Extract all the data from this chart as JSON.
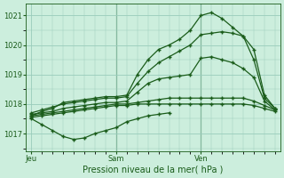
{
  "title": "",
  "xlabel": "Pression niveau de la mer( hPa )",
  "background_color": "#cceedd",
  "grid_color": "#99ccbb",
  "line_color": "#1a5c1a",
  "ylim": [
    1016.4,
    1021.4
  ],
  "yticks": [
    1017,
    1018,
    1019,
    1020,
    1021
  ],
  "xtick_labels": [
    "Jeu",
    "Sam",
    "Ven"
  ],
  "xtick_positions": [
    0,
    8,
    16
  ],
  "vlines": [
    8,
    16
  ],
  "xlim": [
    -0.5,
    23.5
  ],
  "series": [
    {
      "x": [
        0,
        1,
        2,
        3,
        4,
        5,
        6,
        7,
        8,
        9,
        10,
        11,
        12,
        13,
        14,
        15,
        16,
        17,
        18,
        19,
        20,
        21,
        22,
        23
      ],
      "y": [
        1017.6,
        1017.75,
        1017.85,
        1018.05,
        1018.1,
        1018.15,
        1018.2,
        1018.25,
        1018.25,
        1018.3,
        1019.0,
        1019.5,
        1019.85,
        1020.0,
        1020.2,
        1020.5,
        1021.0,
        1021.1,
        1020.9,
        1020.6,
        1020.3,
        1019.5,
        1018.2,
        1017.85
      ]
    },
    {
      "x": [
        0,
        1,
        2,
        3,
        4,
        5,
        6,
        7,
        8,
        9,
        10,
        11,
        12,
        13,
        14,
        15,
        16,
        17,
        18,
        19,
        20,
        21,
        22,
        23
      ],
      "y": [
        1017.7,
        1017.8,
        1017.9,
        1018.0,
        1018.05,
        1018.1,
        1018.15,
        1018.2,
        1018.2,
        1018.25,
        1018.7,
        1019.1,
        1019.4,
        1019.6,
        1019.8,
        1020.0,
        1020.35,
        1020.4,
        1020.45,
        1020.4,
        1020.3,
        1019.85,
        1018.3,
        1017.85
      ]
    },
    {
      "x": [
        0,
        1,
        2,
        3,
        4,
        5,
        6,
        7,
        8,
        9,
        10,
        11,
        12,
        13,
        14,
        15,
        16,
        17,
        18,
        19,
        20,
        21,
        22,
        23
      ],
      "y": [
        1017.65,
        1017.7,
        1017.75,
        1017.85,
        1017.9,
        1017.95,
        1018.0,
        1018.05,
        1018.05,
        1018.1,
        1018.4,
        1018.7,
        1018.85,
        1018.9,
        1018.95,
        1019.0,
        1019.55,
        1019.6,
        1019.5,
        1019.4,
        1019.2,
        1018.9,
        1018.1,
        1017.8
      ]
    },
    {
      "x": [
        0,
        1,
        2,
        3,
        4,
        5,
        6,
        7,
        8,
        9,
        10,
        11,
        12,
        13,
        14,
        15,
        16,
        17,
        18,
        19,
        20,
        21,
        22,
        23
      ],
      "y": [
        1017.6,
        1017.65,
        1017.7,
        1017.75,
        1017.8,
        1017.85,
        1017.9,
        1017.95,
        1018.0,
        1018.0,
        1018.05,
        1018.1,
        1018.15,
        1018.2,
        1018.2,
        1018.2,
        1018.2,
        1018.2,
        1018.2,
        1018.2,
        1018.2,
        1018.1,
        1017.95,
        1017.8
      ]
    },
    {
      "x": [
        0,
        1,
        2,
        3,
        4,
        5,
        6,
        7,
        8,
        9,
        10,
        11,
        12,
        13,
        14,
        15,
        16,
        17,
        18,
        19,
        20,
        21,
        22,
        23
      ],
      "y": [
        1017.55,
        1017.6,
        1017.65,
        1017.7,
        1017.75,
        1017.8,
        1017.85,
        1017.9,
        1017.95,
        1017.95,
        1018.0,
        1018.0,
        1018.0,
        1018.0,
        1018.0,
        1018.0,
        1018.0,
        1018.0,
        1018.0,
        1018.0,
        1018.0,
        1017.95,
        1017.85,
        1017.75
      ]
    },
    {
      "x": [
        0,
        1,
        2,
        3,
        4,
        5,
        6,
        7,
        8,
        9,
        10,
        11,
        12,
        13
      ],
      "y": [
        1017.5,
        1017.3,
        1017.1,
        1016.9,
        1016.8,
        1016.85,
        1017.0,
        1017.1,
        1017.2,
        1017.4,
        1017.5,
        1017.6,
        1017.65,
        1017.7
      ]
    }
  ]
}
